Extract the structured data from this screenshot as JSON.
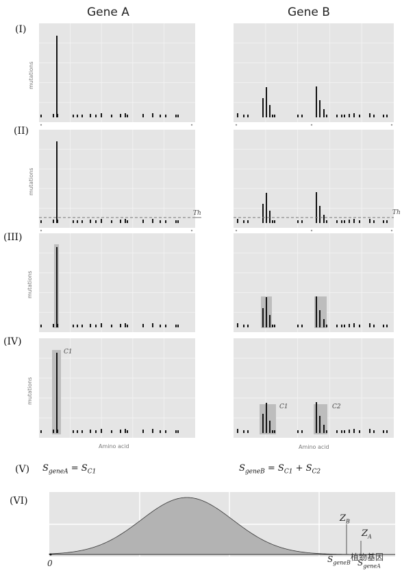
{
  "header": {
    "gene_a": "Gene A",
    "gene_b": "Gene B"
  },
  "rows": [
    {
      "label": "(I)"
    },
    {
      "label": "(II)"
    },
    {
      "label": "(III)"
    },
    {
      "label": "(IV)"
    },
    {
      "label": "(V)"
    },
    {
      "label": "(VI)"
    }
  ],
  "axis": {
    "ylabel": "mutations",
    "xlabel": "Amino acid"
  },
  "threshold_label": "Th",
  "cluster_labels": {
    "gene_a": [
      "C1"
    ],
    "gene_b": [
      "C1",
      "C2"
    ]
  },
  "formulas": {
    "gene_a": {
      "lhs": "S",
      "lhs_sub": "geneA",
      "eq": " = ",
      "t1": "S",
      "t1_sub": "C1"
    },
    "gene_b": {
      "lhs": "S",
      "lhs_sub": "geneB",
      "eq": " = ",
      "t1": "S",
      "t1_sub": "C1",
      "plus": " + ",
      "t2": "S",
      "t2_sub": "C2"
    }
  },
  "distribution": {
    "zero_label": "0",
    "zb": "Z",
    "zb_sub": "B",
    "za": "Z",
    "za_sub": "A",
    "sgb": "S",
    "sgb_sub": "geneB",
    "sga": "S",
    "sga_sub": "geneA"
  },
  "watermark": "植物基因",
  "colors": {
    "panel_bg": "#e5e5e5",
    "grid": "#f2f2f2",
    "bar": "#111111",
    "highlight": "#bdbdbd",
    "density": "#b3b3b3",
    "threshold": "#777777"
  }
}
